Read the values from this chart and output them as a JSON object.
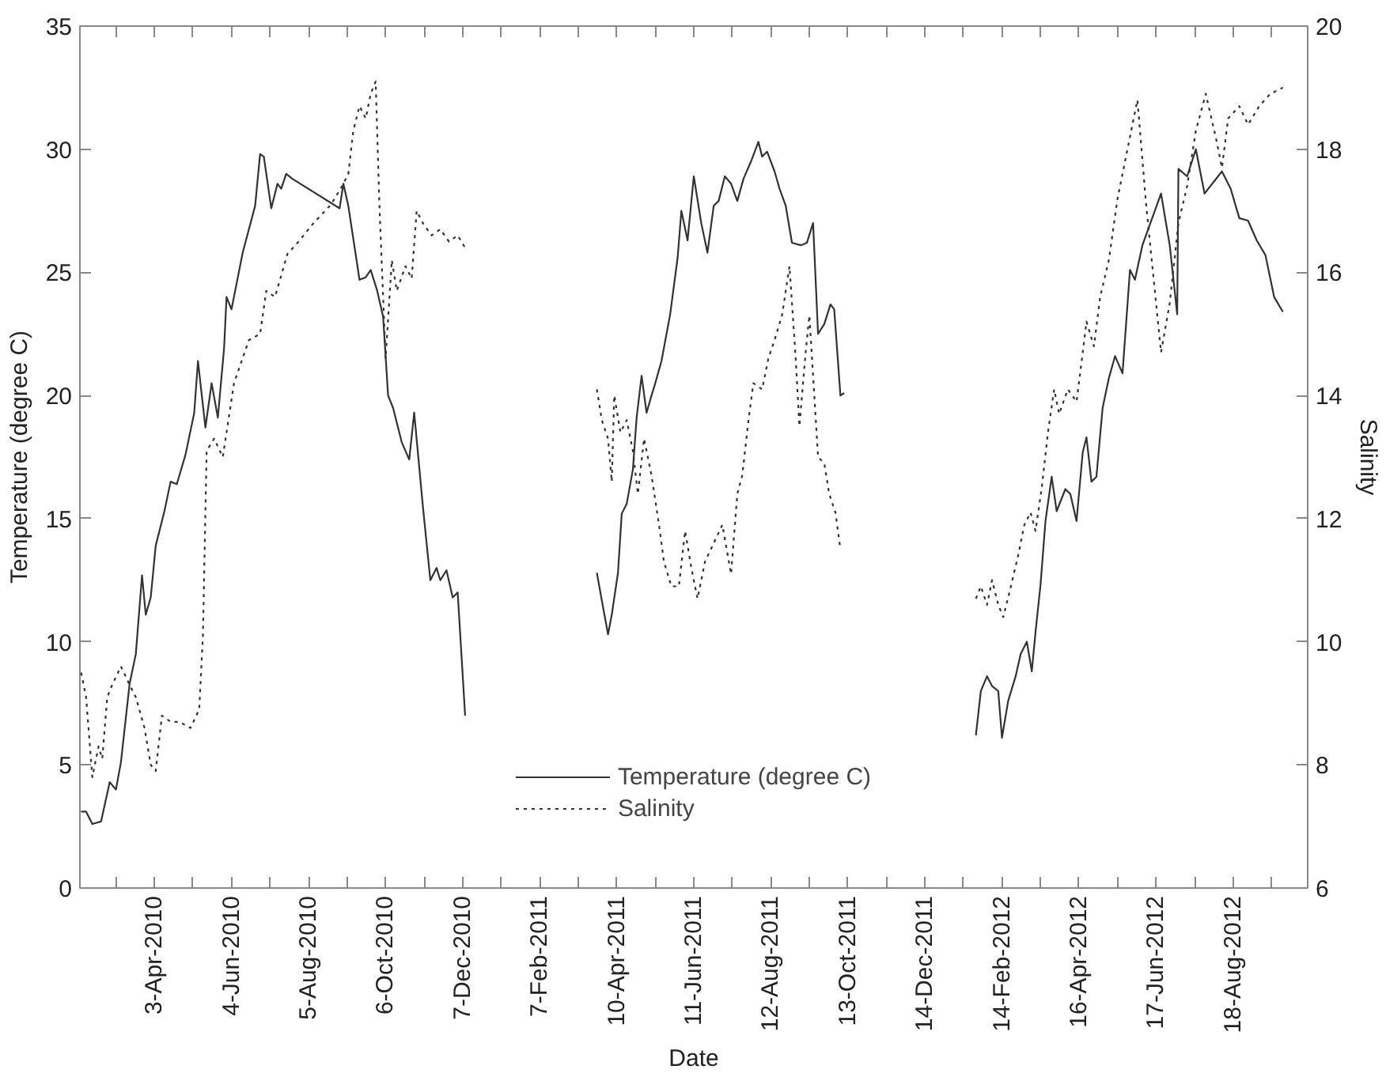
{
  "chart_data": {
    "type": "line",
    "xlabel": "Date",
    "ylabel": "Temperature (degree C)",
    "y2label": "Salinity",
    "xlim": [
      "2010-02-02",
      "2012-10-17"
    ],
    "xticks": [
      {
        "value": "2010-03-03",
        "label": null
      },
      {
        "value": "2010-04-03",
        "label": "3-Apr-2010"
      },
      {
        "value": "2010-05-04",
        "label": null
      },
      {
        "value": "2010-06-04",
        "label": "4-Jun-2010"
      },
      {
        "value": "2010-07-05",
        "label": null
      },
      {
        "value": "2010-08-05",
        "label": "5-Aug-2010"
      },
      {
        "value": "2010-09-05",
        "label": null
      },
      {
        "value": "2010-10-06",
        "label": "6-Oct-2010"
      },
      {
        "value": "2010-11-06",
        "label": null
      },
      {
        "value": "2010-12-07",
        "label": "7-Dec-2010"
      },
      {
        "value": "2011-01-07",
        "label": null
      },
      {
        "value": "2011-02-07",
        "label": "7-Feb-2011"
      },
      {
        "value": "2011-03-10",
        "label": null
      },
      {
        "value": "2011-04-10",
        "label": "10-Apr-2011"
      },
      {
        "value": "2011-05-11",
        "label": null
      },
      {
        "value": "2011-06-11",
        "label": "11-Jun-2011"
      },
      {
        "value": "2011-07-12",
        "label": null
      },
      {
        "value": "2011-08-12",
        "label": "12-Aug-2011"
      },
      {
        "value": "2011-09-12",
        "label": null
      },
      {
        "value": "2011-10-13",
        "label": "13-Oct-2011"
      },
      {
        "value": "2011-11-13",
        "label": null
      },
      {
        "value": "2011-12-14",
        "label": "14-Dec-2011"
      },
      {
        "value": "2012-01-14",
        "label": null
      },
      {
        "value": "2012-02-14",
        "label": "14-Feb-2012"
      },
      {
        "value": "2012-03-16",
        "label": null
      },
      {
        "value": "2012-04-16",
        "label": "16-Apr-2012"
      },
      {
        "value": "2012-05-17",
        "label": null
      },
      {
        "value": "2012-06-17",
        "label": "17-Jun-2012"
      },
      {
        "value": "2012-07-18",
        "label": null
      },
      {
        "value": "2012-08-18",
        "label": "18-Aug-2012"
      },
      {
        "value": "2012-09-18",
        "label": null
      }
    ],
    "ylim": [
      0,
      35
    ],
    "yticks": [
      0,
      5,
      10,
      15,
      20,
      25,
      30,
      35
    ],
    "y2lim": [
      6,
      20
    ],
    "y2ticks": [
      6,
      8,
      10,
      12,
      14,
      16,
      18,
      20
    ],
    "legend": "bottom",
    "series": [
      {
        "name": "Temperature (degree C)",
        "color": "#333333",
        "line_style": "solid",
        "x": [
          "2010-02-03",
          "2010-02-07",
          "2010-02-12",
          "2010-02-19",
          "2010-02-26",
          "2010-03-03",
          "2010-03-07",
          "2010-03-14",
          "2010-03-19",
          "2010-03-24",
          "2010-03-27",
          "2010-03-31",
          "2010-04-04",
          "2010-04-11",
          "2010-04-16",
          "2010-04-21",
          "2010-04-28",
          "2010-05-05",
          "2010-05-08",
          "2010-05-14",
          "2010-05-19",
          "2010-05-24",
          "2010-05-29",
          "2010-05-31",
          "2010-06-04",
          "2010-06-13",
          "2010-06-23",
          "2010-06-27",
          "2010-06-30",
          "2010-07-06",
          "2010-07-11",
          "2010-07-14",
          "2010-07-18",
          "2010-07-23",
          "2010-08-30",
          "2010-09-02",
          "2010-09-06",
          "2010-09-15",
          "2010-09-20",
          "2010-09-24",
          "2010-09-29",
          "2010-10-04",
          "2010-10-08",
          "2010-10-12",
          "2010-10-19",
          "2010-10-25",
          "2010-10-29",
          "2010-11-05",
          "2010-11-11",
          "2010-11-16",
          "2010-11-19",
          "2010-11-24",
          "2010-11-29",
          "2010-12-03",
          "2010-12-09",
          "2011-02-01",
          "2011-03-25",
          "2011-03-30",
          "2011-04-03",
          "2011-04-06",
          "2011-04-11",
          "2011-04-14",
          "2011-04-18",
          "2011-04-23",
          "2011-04-26",
          "2011-04-30",
          "2011-05-04",
          "2011-05-08",
          "2011-05-11",
          "2011-05-16",
          "2011-05-23",
          "2011-05-29",
          "2011-06-01",
          "2011-06-06",
          "2011-06-11",
          "2011-06-17",
          "2011-06-22",
          "2011-06-27",
          "2011-07-01",
          "2011-07-06",
          "2011-07-11",
          "2011-07-16",
          "2011-07-21",
          "2011-07-27",
          "2011-08-02",
          "2011-08-05",
          "2011-08-09",
          "2011-08-15",
          "2011-08-19",
          "2011-08-24",
          "2011-08-29",
          "2011-09-05",
          "2011-09-10",
          "2011-09-15",
          "2011-09-19",
          "2011-09-24",
          "2011-09-29",
          "2011-10-02",
          "2011-10-07",
          "2011-10-10",
          "2011-12-15",
          "2012-01-24",
          "2012-01-28",
          "2012-02-02",
          "2012-02-06",
          "2012-02-11",
          "2012-02-14",
          "2012-02-19",
          "2012-02-25",
          "2012-02-29",
          "2012-03-05",
          "2012-03-09",
          "2012-03-12",
          "2012-03-16",
          "2012-03-20",
          "2012-03-25",
          "2012-03-29",
          "2012-04-05",
          "2012-04-09",
          "2012-04-14",
          "2012-04-19",
          "2012-04-22",
          "2012-04-26",
          "2012-04-30",
          "2012-05-05",
          "2012-05-10",
          "2012-05-15",
          "2012-05-21",
          "2012-05-27",
          "2012-05-31",
          "2012-06-06",
          "2012-06-21",
          "2012-06-28",
          "2012-07-04",
          "2012-07-05",
          "2012-07-12",
          "2012-07-19",
          "2012-07-26",
          "2012-08-09",
          "2012-08-16",
          "2012-08-23",
          "2012-08-30",
          "2012-09-06",
          "2012-09-13",
          "2012-09-20",
          "2012-09-27"
        ],
        "values": [
          3.1,
          3.1,
          2.6,
          2.7,
          4.3,
          4.0,
          5.1,
          8.3,
          9.5,
          12.7,
          11.1,
          11.8,
          13.9,
          15.3,
          16.5,
          16.4,
          17.6,
          19.3,
          21.4,
          18.7,
          20.5,
          19.1,
          21.9,
          24.0,
          23.5,
          25.8,
          27.7,
          29.8,
          29.7,
          27.6,
          28.6,
          28.4,
          29.0,
          28.8,
          27.6,
          28.6,
          27.7,
          24.7,
          24.8,
          25.1,
          24.3,
          23.2,
          20.0,
          19.5,
          18.1,
          17.4,
          19.3,
          15.5,
          12.5,
          13.0,
          12.5,
          12.9,
          11.8,
          12.0,
          7.0,
          null,
          12.8,
          11.4,
          10.3,
          11.1,
          12.8,
          15.2,
          15.6,
          17.0,
          19.1,
          20.8,
          19.3,
          20.0,
          20.5,
          21.4,
          23.3,
          25.6,
          27.5,
          26.3,
          28.9,
          27.0,
          25.8,
          27.7,
          27.9,
          28.9,
          28.6,
          27.9,
          28.8,
          29.5,
          30.3,
          29.7,
          29.9,
          29.1,
          28.4,
          27.7,
          26.2,
          26.1,
          26.2,
          27.0,
          22.5,
          22.9,
          23.7,
          23.5,
          20.0,
          20.1,
          null,
          6.2,
          8.0,
          8.6,
          8.2,
          8.0,
          6.1,
          7.6,
          8.6,
          9.5,
          10.0,
          8.8,
          10.4,
          12.3,
          14.9,
          16.7,
          15.3,
          16.2,
          16.0,
          14.9,
          17.7,
          18.3,
          16.5,
          16.7,
          19.5,
          20.7,
          21.6,
          20.9,
          25.1,
          24.7,
          26.1,
          28.2,
          26.1,
          23.3,
          29.2,
          28.9,
          30.0,
          28.2,
          29.1,
          28.4,
          27.2,
          27.1,
          26.3,
          25.7,
          24.0,
          23.4
        ]
      },
      {
        "name": "Salinity",
        "color": "#333333",
        "line_style": "dotted",
        "axis": "y2",
        "x": [
          "2010-02-03",
          "2010-02-07",
          "2010-02-12",
          "2010-02-17",
          "2010-02-20",
          "2010-02-24",
          "2010-02-28",
          "2010-03-07",
          "2010-03-14",
          "2010-03-19",
          "2010-03-26",
          "2010-03-31",
          "2010-04-04",
          "2010-04-09",
          "2010-04-16",
          "2010-04-23",
          "2010-05-02",
          "2010-05-09",
          "2010-05-12",
          "2010-05-15",
          "2010-05-21",
          "2010-05-28",
          "2010-06-06",
          "2010-06-18",
          "2010-06-27",
          "2010-07-02",
          "2010-07-09",
          "2010-07-19",
          "2010-07-28",
          "2010-08-09",
          "2010-08-23",
          "2010-09-01",
          "2010-09-06",
          "2010-09-10",
          "2010-09-15",
          "2010-09-20",
          "2010-09-24",
          "2010-09-28",
          "2010-10-01",
          "2010-10-06",
          "2010-10-11",
          "2010-10-15",
          "2010-10-22",
          "2010-10-27",
          "2010-10-31",
          "2010-11-05",
          "2010-11-12",
          "2010-11-19",
          "2010-11-26",
          "2010-12-03",
          "2010-12-09",
          "2011-02-01",
          "2011-03-25",
          "2011-03-29",
          "2011-04-03",
          "2011-04-06",
          "2011-04-08",
          "2011-04-13",
          "2011-04-18",
          "2011-04-23",
          "2011-04-27",
          "2011-05-02",
          "2011-05-08",
          "2011-05-14",
          "2011-05-18",
          "2011-05-24",
          "2011-05-30",
          "2011-06-04",
          "2011-06-09",
          "2011-06-14",
          "2011-06-20",
          "2011-06-27",
          "2011-07-04",
          "2011-07-11",
          "2011-07-16",
          "2011-07-20",
          "2011-07-25",
          "2011-07-29",
          "2011-08-05",
          "2011-08-10",
          "2011-08-15",
          "2011-08-21",
          "2011-08-27",
          "2011-09-01",
          "2011-09-04",
          "2011-09-09",
          "2011-09-12",
          "2011-09-16",
          "2011-09-19",
          "2011-09-24",
          "2011-09-28",
          "2011-10-03",
          "2011-10-07",
          "2011-12-15",
          "2012-01-24",
          "2012-01-28",
          "2012-02-02",
          "2012-02-06",
          "2012-02-11",
          "2012-02-15",
          "2012-02-20",
          "2012-02-27",
          "2012-03-03",
          "2012-03-08",
          "2012-03-12",
          "2012-03-17",
          "2012-03-22",
          "2012-03-27",
          "2012-03-31",
          "2012-04-07",
          "2012-04-14",
          "2012-04-19",
          "2012-04-22",
          "2012-04-28",
          "2012-05-03",
          "2012-05-10",
          "2012-05-17",
          "2012-05-24",
          "2012-05-29",
          "2012-06-02",
          "2012-06-09",
          "2012-06-16",
          "2012-06-21",
          "2012-06-28",
          "2012-07-05",
          "2012-07-12",
          "2012-07-19",
          "2012-07-27",
          "2012-08-04",
          "2012-08-09",
          "2012-08-14",
          "2012-08-23",
          "2012-08-30",
          "2012-09-08",
          "2012-09-17",
          "2012-09-27"
        ],
        "values": [
          9.5,
          9.1,
          7.8,
          8.3,
          8.1,
          9.1,
          9.3,
          9.6,
          9.3,
          9.1,
          8.6,
          8.0,
          7.9,
          8.8,
          8.7,
          8.7,
          8.6,
          8.9,
          10.1,
          13.1,
          13.3,
          13.0,
          14.2,
          14.9,
          15.0,
          15.7,
          15.6,
          16.3,
          16.5,
          16.8,
          17.1,
          17.4,
          17.6,
          18.3,
          18.7,
          18.5,
          18.9,
          19.1,
          17.1,
          14.6,
          16.2,
          15.7,
          16.1,
          15.9,
          17.0,
          16.8,
          16.6,
          16.7,
          16.5,
          16.6,
          16.4,
          null,
          14.1,
          13.6,
          13.3,
          12.6,
          14.0,
          13.4,
          13.6,
          13.1,
          12.4,
          13.3,
          12.7,
          11.9,
          11.3,
          10.9,
          10.9,
          11.8,
          11.2,
          10.7,
          11.3,
          11.6,
          11.9,
          11.1,
          12.4,
          12.7,
          13.6,
          14.2,
          14.1,
          14.6,
          14.9,
          15.3,
          16.1,
          14.6,
          13.5,
          14.7,
          15.3,
          14.0,
          13.0,
          12.9,
          12.4,
          12.1,
          11.5,
          null,
          10.7,
          10.9,
          10.6,
          11.0,
          10.6,
          10.4,
          10.8,
          11.4,
          11.9,
          12.1,
          11.8,
          12.5,
          13.4,
          14.1,
          13.7,
          14.1,
          13.9,
          14.7,
          15.2,
          14.8,
          15.6,
          16.2,
          17.2,
          17.9,
          18.4,
          18.8,
          17.1,
          15.7,
          14.7,
          15.5,
          16.8,
          17.4,
          18.3,
          18.9,
          18.2,
          17.7,
          18.5,
          18.7,
          18.4,
          18.7,
          18.9,
          19.0
        ]
      }
    ]
  }
}
